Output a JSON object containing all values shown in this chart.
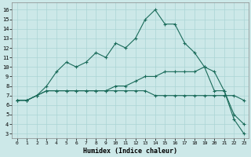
{
  "xlabel": "Humidex (Indice chaleur)",
  "background_color": "#cce8e8",
  "grid_color": "#aad4d4",
  "line_color": "#1a6b5a",
  "xlim": [
    -0.5,
    23.5
  ],
  "ylim": [
    2.5,
    16.8
  ],
  "yticks": [
    3,
    4,
    5,
    6,
    7,
    8,
    9,
    10,
    11,
    12,
    13,
    14,
    15,
    16
  ],
  "xticks": [
    0,
    1,
    2,
    3,
    4,
    5,
    6,
    7,
    8,
    9,
    10,
    11,
    12,
    13,
    14,
    15,
    16,
    17,
    18,
    19,
    20,
    21,
    22,
    23
  ],
  "series": [
    {
      "x": [
        0,
        1,
        2,
        3,
        4,
        5,
        6,
        7,
        8,
        9,
        10,
        11,
        12,
        13,
        14,
        15,
        16,
        17,
        18,
        19,
        20,
        21,
        22,
        23
      ],
      "y": [
        6.5,
        6.5,
        7.0,
        8.0,
        9.5,
        10.5,
        10.0,
        10.5,
        11.5,
        11.0,
        12.5,
        12.0,
        13.0,
        15.0,
        16.0,
        14.5,
        14.5,
        12.5,
        11.5,
        10.0,
        9.5,
        7.5,
        5.0,
        4.0
      ]
    },
    {
      "x": [
        0,
        1,
        2,
        3,
        4,
        5,
        6,
        7,
        8,
        9,
        10,
        11,
        12,
        13,
        14,
        15,
        16,
        17,
        18,
        19,
        20,
        21,
        22,
        23
      ],
      "y": [
        6.5,
        6.5,
        7.0,
        7.5,
        7.5,
        7.5,
        7.5,
        7.5,
        7.5,
        7.5,
        8.0,
        8.0,
        8.5,
        9.0,
        9.0,
        9.5,
        9.5,
        9.5,
        9.5,
        10.0,
        7.5,
        7.5,
        4.5,
        3.0
      ]
    },
    {
      "x": [
        0,
        1,
        2,
        3,
        4,
        5,
        6,
        7,
        8,
        9,
        10,
        11,
        12,
        13,
        14,
        15,
        16,
        17,
        18,
        19,
        20,
        21,
        22,
        23
      ],
      "y": [
        6.5,
        6.5,
        7.0,
        7.5,
        7.5,
        7.5,
        7.5,
        7.5,
        7.5,
        7.5,
        7.5,
        7.5,
        7.5,
        7.5,
        7.0,
        7.0,
        7.0,
        7.0,
        7.0,
        7.0,
        7.0,
        7.0,
        7.0,
        6.5
      ]
    }
  ]
}
